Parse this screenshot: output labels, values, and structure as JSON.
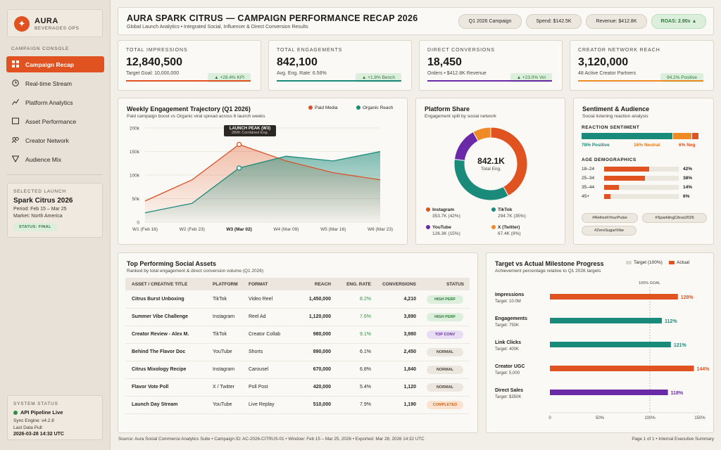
{
  "brand": {
    "name": "AURA",
    "subtitle": "BEVERAGES OPS",
    "logo_icon": "spark-icon",
    "accent": "#e0521f"
  },
  "sidebar": {
    "section_title": "CAMPAIGN CONSOLE",
    "items": [
      {
        "label": "Campaign Recap",
        "icon": "grid-icon",
        "active": true
      },
      {
        "label": "Real-time Stream",
        "icon": "clock-icon"
      },
      {
        "label": "Platform Analytics",
        "icon": "trend-line-icon"
      },
      {
        "label": "Asset Performance",
        "icon": "square-icon"
      },
      {
        "label": "Creator Network",
        "icon": "people-icon"
      },
      {
        "label": "Audience Mix",
        "icon": "funnel-icon"
      }
    ],
    "launch": {
      "label": "SELECTED LAUNCH",
      "name": "Spark Citrus 2026",
      "period": "Period: Feb 15 – Mar 25",
      "market": "Market: North America",
      "status": "STATUS: FINAL"
    },
    "system": {
      "label": "SYSTEM STATUS",
      "pipeline": "API Pipeline Live",
      "engine": "Sync Engine: v4.2.8",
      "last_pull_label": "Last Data Pull:",
      "last_pull": "2026-03-28 14:32 UTC"
    }
  },
  "header": {
    "title": "AURA SPARK CITRUS — CAMPAIGN PERFORMANCE RECAP 2026",
    "subtitle": "Global Launch Analytics • Integrated Social, Influencer & Direct Conversion Results",
    "pills": [
      "Q1 2026 Campaign",
      "Spend: $142.5K",
      "Revenue: $412.8K",
      "ROAS: 2.90x ▲"
    ]
  },
  "kpis": [
    {
      "label": "TOTAL IMPRESSIONS",
      "value": "12,840,500",
      "sub": "Target Goal: 10,000,000",
      "badge": "▲ +28.4% KPI",
      "color": "#e0521f"
    },
    {
      "label": "TOTAL ENGAGEMENTS",
      "value": "842,100",
      "sub": "Avg. Eng. Rate: 6.56%",
      "badge": "▲ +1.8% Bench",
      "color": "#1a8a7a"
    },
    {
      "label": "DIRECT CONVERSIONS",
      "value": "18,450",
      "sub": "Orders • $412.8K Revenue",
      "badge": "▲ +23.0% Vol",
      "color": "#6a2aa8"
    },
    {
      "label": "CREATOR NETWORK REACH",
      "value": "3,120,000",
      "sub": "48 Active Creator Partners",
      "badge": "94.2% Positive",
      "color": "#f08a24"
    }
  ],
  "trajectory": {
    "title": "Weekly Engagement Trajectory (Q1 2026)",
    "subtitle": "Paid campaign boost vs Organic viral spread across 6 launch weeks",
    "annotation_title": "LAUNCH PEAK (W3)",
    "annotation_sub": "280K Combined Eng.",
    "chart_data": {
      "type": "area",
      "categories": [
        "W1 (Feb 16)",
        "W2 (Feb 23)",
        "W3 (Mar 02)",
        "W4 (Mar 09)",
        "W5 (Mar 16)",
        "W6 (Mar 23)"
      ],
      "y_ticks": [
        "0",
        "50k",
        "100k",
        "150k",
        "200k"
      ],
      "ylim": [
        0,
        200000
      ],
      "series": [
        {
          "name": "Paid Media",
          "color": "#d9532b",
          "values": [
            45000,
            90000,
            165000,
            130000,
            105000,
            90000
          ]
        },
        {
          "name": "Organic Reach",
          "color": "#1a8a7a",
          "values": [
            20000,
            40000,
            115000,
            140000,
            130000,
            150000
          ]
        }
      ],
      "highlight_category": "W3 (Mar 02)"
    }
  },
  "platform": {
    "title": "Platform Share",
    "subtitle": "Engagement split by social network",
    "center_value": "842.1K",
    "center_label": "Total Eng.",
    "chart_data": {
      "type": "pie",
      "slices": [
        {
          "name": "Instagram",
          "value": 353.7,
          "pct": 42,
          "label": "353.7K (42%)",
          "color": "#e0521f"
        },
        {
          "name": "TikTok",
          "value": 294.7,
          "pct": 35,
          "label": "294.7K (35%)",
          "color": "#1a8a7a"
        },
        {
          "name": "YouTube",
          "value": 126.3,
          "pct": 15,
          "label": "126.3K (15%)",
          "color": "#6a2aa8"
        },
        {
          "name": "X (Twitter)",
          "value": 67.4,
          "pct": 8,
          "label": "67.4K (8%)",
          "color": "#f08a24"
        }
      ]
    }
  },
  "sentiment": {
    "title": "Sentiment & Audience",
    "subtitle": "Social listening reaction analysis",
    "reaction_title": "REACTION SENTIMENT",
    "reactions": [
      {
        "label": "78% Positive",
        "value": 78,
        "color": "#1a8a7a"
      },
      {
        "label": "16% Neutral",
        "value": 16,
        "color": "#f08a24"
      },
      {
        "label": "6% Neg",
        "value": 6,
        "color": "#e0521f"
      }
    ],
    "age_title": "AGE DEMOGRAPHICS",
    "chart_data": {
      "type": "bar",
      "categories": [
        "18–24",
        "25–34",
        "35–44",
        "45+"
      ],
      "values": [
        42,
        38,
        14,
        6
      ],
      "labels": [
        "42%",
        "38%",
        "14%",
        "6%"
      ]
    },
    "tags": [
      "#RefreshYourPulse",
      "#SparklingCitrus2026",
      "#ZeroSugarVibe"
    ]
  },
  "assets": {
    "title": "Top Performing Social Assets",
    "subtitle": "Ranked by total engagement & direct conversion volume (Q1 2026)",
    "columns": [
      "ASSET / CREATIVE TITLE",
      "PLATFORM",
      "FORMAT",
      "REACH",
      "ENG. RATE",
      "CONVERSIONS",
      "STATUS"
    ],
    "rows": [
      {
        "title": "Citrus Burst Unboxing",
        "platform": "TikTok",
        "format": "Video Reel",
        "reach": "1,450,000",
        "rate": "8.2%",
        "conv": "4,210",
        "status": "HIGH PERF",
        "kind": "high"
      },
      {
        "title": "Summer Vibe Challenge",
        "platform": "Instagram",
        "format": "Reel Ad",
        "reach": "1,120,000",
        "rate": "7.6%",
        "conv": "3,890",
        "status": "HIGH PERF",
        "kind": "high"
      },
      {
        "title": "Creator Review - Alex M.",
        "platform": "TikTok",
        "format": "Creator Collab",
        "reach": "980,000",
        "rate": "9.1%",
        "conv": "3,980",
        "status": "TOP CONV",
        "kind": "top"
      },
      {
        "title": "Behind The Flavor Doc",
        "platform": "YouTube",
        "format": "Shorts",
        "reach": "890,000",
        "rate": "6.1%",
        "conv": "2,450",
        "status": "NORMAL",
        "kind": "normal"
      },
      {
        "title": "Citrus Mixology Recipe",
        "platform": "Instagram",
        "format": "Carousel",
        "reach": "670,000",
        "rate": "6.8%",
        "conv": "1,840",
        "status": "NORMAL",
        "kind": "normal"
      },
      {
        "title": "Flavor Vote Poll",
        "platform": "X / Twitter",
        "format": "Poll Post",
        "reach": "420,000",
        "rate": "5.4%",
        "conv": "1,120",
        "status": "NORMAL",
        "kind": "normal"
      },
      {
        "title": "Launch Day Stream",
        "platform": "YouTube",
        "format": "Live Replay",
        "reach": "510,000",
        "rate": "7.9%",
        "conv": "1,190",
        "status": "COMPLETED",
        "kind": "done"
      }
    ]
  },
  "milestones": {
    "title": "Target vs Actual Milestone Progress",
    "subtitle": "Achievement percentage relative to Q1 2026 targets",
    "legend_target": "Target (100%)",
    "legend_actual": "Actual",
    "goal_label": "100% GOAL",
    "chart_data": {
      "type": "bar",
      "orientation": "horizontal",
      "xlim": [
        0,
        150
      ],
      "x_ticks": [
        "0",
        "50%",
        "100%",
        "150%"
      ],
      "items": [
        {
          "name": "Impressions",
          "target": "Target: 10.0M",
          "value": 128,
          "label": "128%",
          "color": "#e0521f"
        },
        {
          "name": "Engagements",
          "target": "Target: 750K",
          "value": 112,
          "label": "112%",
          "color": "#1a8a7a"
        },
        {
          "name": "Link Clicks",
          "target": "Target: 400K",
          "value": 121,
          "label": "121%",
          "color": "#1a8a7a"
        },
        {
          "name": "Creator UGC",
          "target": "Target: 5,000",
          "value": 144,
          "label": "144%",
          "color": "#e0521f"
        },
        {
          "name": "Direct Sales",
          "target": "Target: $350K",
          "value": 118,
          "label": "118%",
          "color": "#6a2aa8"
        }
      ]
    }
  },
  "footer": {
    "left": "Source: Aura Social Commerce Analytics Suite • Campaign ID: AC-2026-CITRUS-01 • Window: Feb 15 – Mar 25, 2026 • Exported: Mar 28, 2026 14:32 UTC",
    "right": "Page 1 of 1 • Internal Executive Summary"
  }
}
